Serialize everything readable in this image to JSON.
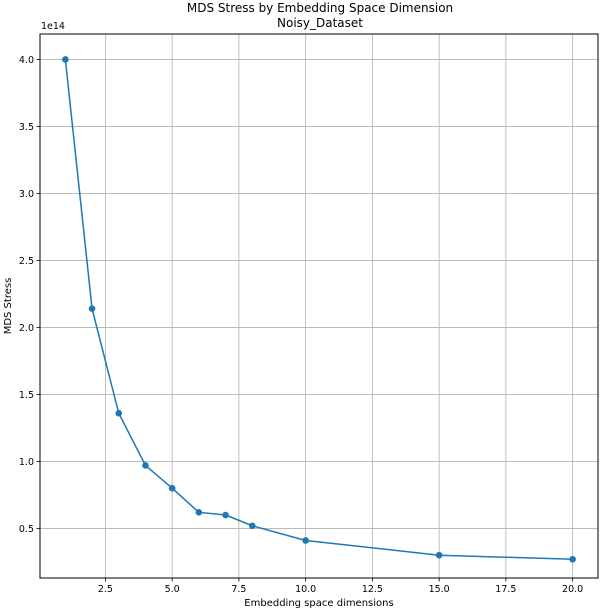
{
  "chart_data": {
    "type": "line",
    "title": "MDS Stress by Embedding Space Dimension",
    "subtitle": "Noisy_Dataset",
    "xlabel": "Embedding space dimensions",
    "ylabel": "MDS Stress",
    "y_offset_text": "1e14",
    "xlim": [
      0.05,
      20.95
    ],
    "ylim": [
      0.13,
      4.19
    ],
    "x_ticks": [
      2.5,
      5.0,
      7.5,
      10.0,
      12.5,
      15.0,
      17.5,
      20.0
    ],
    "x_tick_labels": [
      "2.5",
      "5.0",
      "7.5",
      "10.0",
      "12.5",
      "15.0",
      "17.5",
      "20.0"
    ],
    "y_ticks": [
      0.5,
      1.0,
      1.5,
      2.0,
      2.5,
      3.0,
      3.5,
      4.0
    ],
    "y_tick_labels": [
      "0.5",
      "1.0",
      "1.5",
      "2.0",
      "2.5",
      "3.0",
      "3.5",
      "4.0"
    ],
    "grid": true,
    "marker": "circle",
    "color": "#1f77b4",
    "series": [
      {
        "x": [
          1,
          2,
          3,
          4,
          5,
          6,
          7,
          8,
          10,
          15,
          20
        ],
        "values": [
          4.0,
          2.14,
          1.36,
          0.97,
          0.8,
          0.62,
          0.6,
          0.52,
          0.41,
          0.3,
          0.27
        ]
      }
    ]
  }
}
